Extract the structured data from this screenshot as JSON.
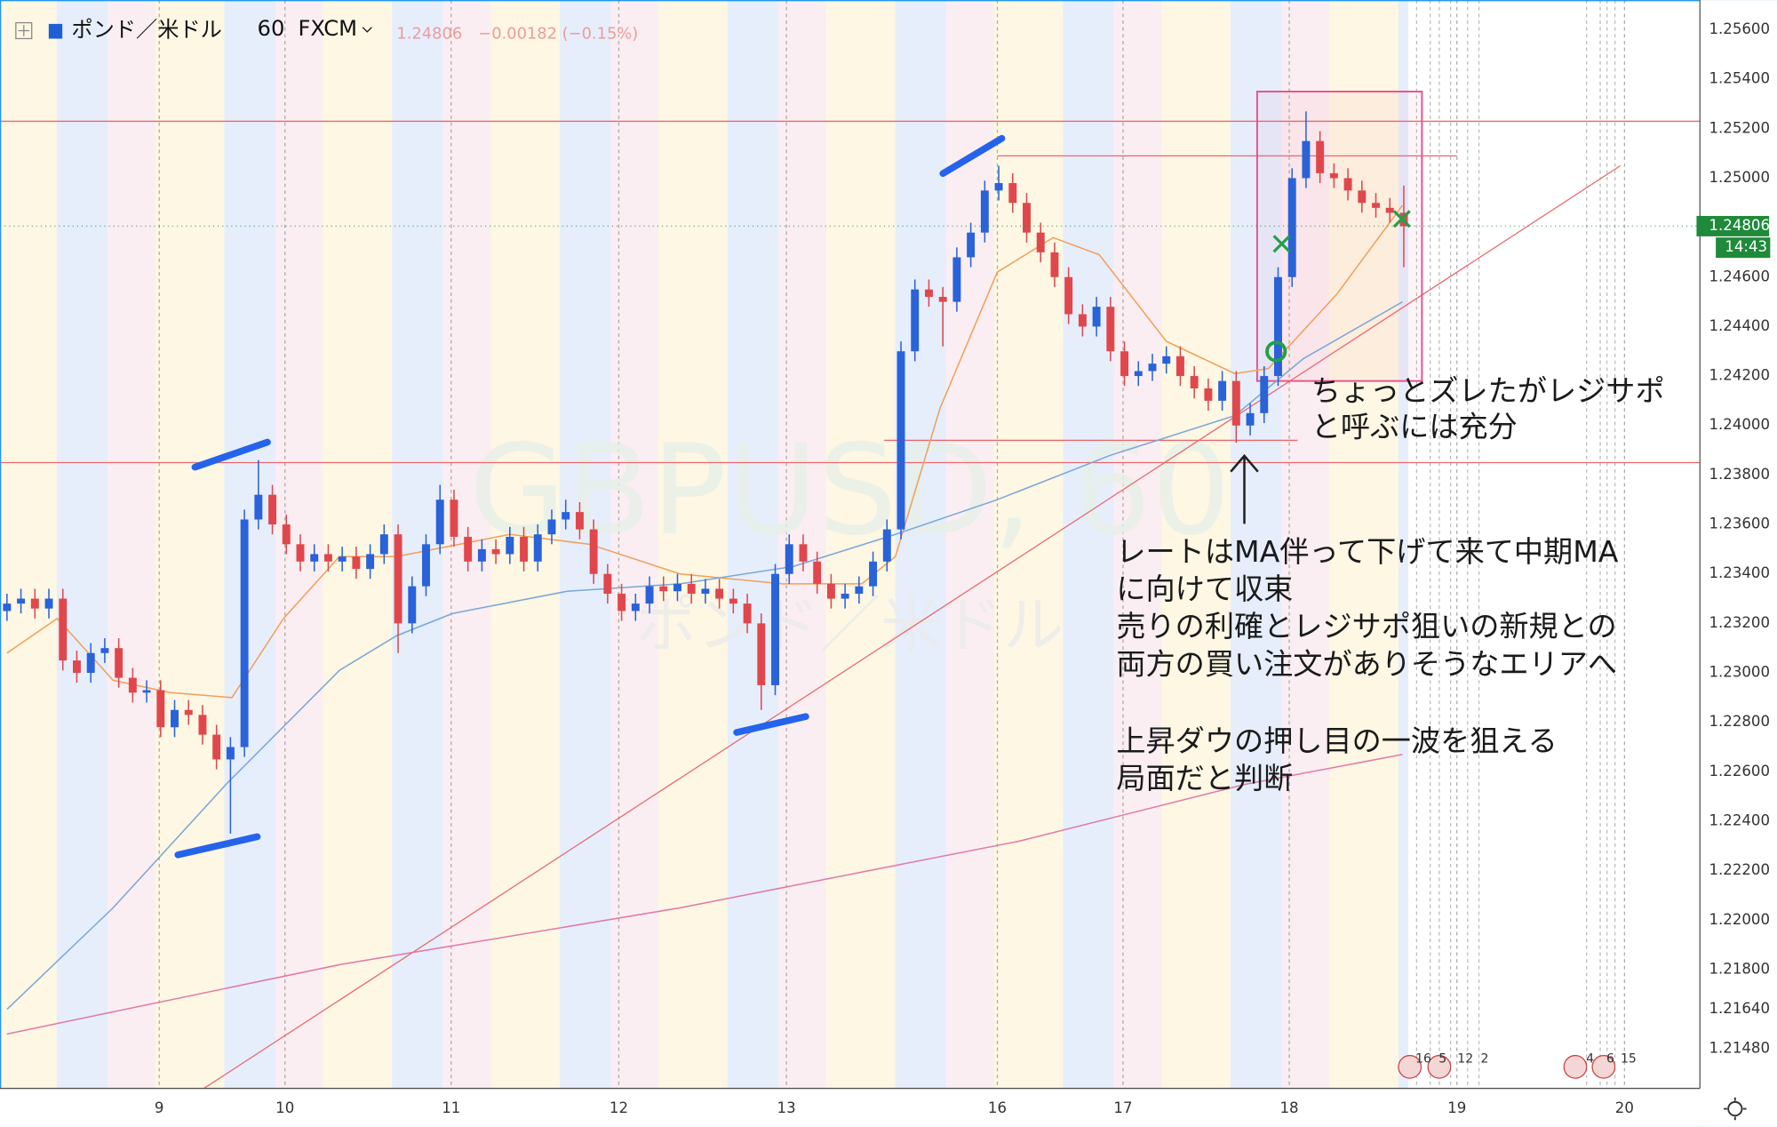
{
  "chart_data": {
    "type": "candlestick",
    "symbol": "ポンド／米ドル",
    "interval": "60",
    "source": "FXCM",
    "header_price": "1.24806",
    "header_change": "−0.00182 (−0.15%)",
    "watermark": "GBPUSD, 60",
    "watermark_sub": "ポンド／米ドル",
    "last_price": {
      "value": 1.24806,
      "label": "1.24806"
    },
    "timer": "14:43",
    "up_color": "#2962d9",
    "down_color": "#e0474c",
    "x": [
      0,
      1,
      2,
      3,
      4,
      5,
      6,
      7,
      8,
      9,
      10,
      11,
      12,
      13,
      14,
      15,
      16,
      17,
      18,
      19,
      20,
      21,
      22,
      23,
      24,
      25,
      26,
      27,
      28,
      29,
      30,
      31,
      32,
      33,
      34,
      35,
      36,
      37,
      38,
      39,
      40,
      41,
      42,
      43,
      44,
      45,
      46,
      47,
      48,
      49,
      50,
      51,
      52,
      53,
      54,
      55,
      56,
      57,
      58,
      59,
      60,
      61,
      62,
      63,
      64,
      65,
      66,
      67,
      68,
      69,
      70,
      71,
      72,
      73,
      74,
      75,
      76,
      77,
      78,
      79,
      80,
      81,
      82,
      83,
      84,
      85,
      86,
      87,
      88,
      89,
      90,
      91,
      92,
      93,
      94,
      95,
      96,
      97,
      98,
      99,
      100
    ],
    "open": [
      1.2325,
      1.2328,
      1.233,
      1.2326,
      1.233,
      1.2305,
      1.23,
      1.2308,
      1.231,
      1.2298,
      1.2292,
      1.2293,
      1.2278,
      1.2285,
      1.2283,
      1.2275,
      1.2265,
      1.227,
      1.2362,
      1.2372,
      1.236,
      1.2352,
      1.2345,
      1.2348,
      1.2345,
      1.2347,
      1.2342,
      1.2348,
      1.2356,
      1.232,
      1.2335,
      1.2352,
      1.237,
      1.2355,
      1.2345,
      1.235,
      1.2348,
      1.2355,
      1.2345,
      1.2356,
      1.2362,
      1.2365,
      1.2358,
      1.234,
      1.2332,
      1.2325,
      1.2328,
      1.2335,
      1.2333,
      1.2336,
      1.2332,
      1.2334,
      1.233,
      1.2328,
      1.232,
      1.2295,
      1.234,
      1.2352,
      1.2345,
      1.2336,
      1.233,
      1.2332,
      1.2335,
      1.2345,
      1.2358,
      1.243,
      1.2455,
      1.2452,
      1.245,
      1.2468,
      1.2478,
      1.2495,
      1.2498,
      1.249,
      1.2478,
      1.247,
      1.246,
      1.2445,
      1.244,
      1.2448,
      1.243,
      1.242,
      1.2422,
      1.2425,
      1.2428,
      1.242,
      1.2415,
      1.241,
      1.2418,
      1.24,
      1.2405,
      1.242,
      1.246,
      1.25,
      1.2515,
      1.2502,
      1.25,
      1.2495,
      1.249,
      1.2488,
      1.2486
    ],
    "high": [
      1.2332,
      1.2334,
      1.2334,
      1.2334,
      1.2334,
      1.2309,
      1.2312,
      1.2314,
      1.2314,
      1.2302,
      1.2297,
      1.2297,
      1.2289,
      1.2289,
      1.2287,
      1.2279,
      1.2274,
      1.2366,
      1.2386,
      1.2376,
      1.2364,
      1.2356,
      1.2352,
      1.2352,
      1.2351,
      1.2351,
      1.2352,
      1.236,
      1.236,
      1.2339,
      1.2356,
      1.2376,
      1.2374,
      1.2359,
      1.2354,
      1.2354,
      1.2359,
      1.2359,
      1.236,
      1.2366,
      1.237,
      1.2369,
      1.2362,
      1.2344,
      1.2336,
      1.2332,
      1.2339,
      1.2339,
      1.234,
      1.234,
      1.2338,
      1.2338,
      1.2334,
      1.2332,
      1.2324,
      1.2344,
      1.2356,
      1.2356,
      1.2349,
      1.234,
      1.2336,
      1.2339,
      1.2349,
      1.2362,
      1.2434,
      1.2459,
      1.2459,
      1.2456,
      1.2472,
      1.2482,
      1.2499,
      1.2505,
      1.2502,
      1.2494,
      1.2482,
      1.2474,
      1.2464,
      1.2449,
      1.2452,
      1.2452,
      1.2434,
      1.2426,
      1.2429,
      1.2432,
      1.2432,
      1.2424,
      1.2419,
      1.2422,
      1.2422,
      1.2409,
      1.2424,
      1.2464,
      1.2504,
      1.2527,
      1.2519,
      1.2506,
      1.2504,
      1.2499,
      1.2494,
      1.2492,
      1.2497
    ],
    "low": [
      1.2321,
      1.2324,
      1.2322,
      1.2322,
      1.2301,
      1.2296,
      1.2296,
      1.2304,
      1.2294,
      1.2288,
      1.2288,
      1.2274,
      1.2274,
      1.2279,
      1.2271,
      1.2261,
      1.2235,
      1.2266,
      1.2358,
      1.2356,
      1.2348,
      1.2341,
      1.2341,
      1.2341,
      1.2341,
      1.2338,
      1.2338,
      1.2344,
      1.2308,
      1.2316,
      1.2331,
      1.2348,
      1.2351,
      1.2341,
      1.2341,
      1.2344,
      1.2344,
      1.2341,
      1.2341,
      1.2352,
      1.2358,
      1.2354,
      1.2336,
      1.2328,
      1.2321,
      1.2321,
      1.2324,
      1.2329,
      1.2329,
      1.2328,
      1.2328,
      1.2326,
      1.2324,
      1.2316,
      1.2285,
      1.2291,
      1.2336,
      1.2341,
      1.2332,
      1.2326,
      1.2326,
      1.2328,
      1.2331,
      1.2341,
      1.2354,
      1.2426,
      1.2448,
      1.2432,
      1.2446,
      1.2464,
      1.2474,
      1.2491,
      1.2486,
      1.2474,
      1.2466,
      1.2456,
      1.2441,
      1.2436,
      1.2436,
      1.2426,
      1.2416,
      1.2416,
      1.2418,
      1.2421,
      1.2416,
      1.2411,
      1.2406,
      1.2406,
      1.2393,
      1.2396,
      1.2401,
      1.2416,
      1.2456,
      1.2496,
      1.2498,
      1.2496,
      1.2491,
      1.2486,
      1.2484,
      1.2482,
      1.2464
    ],
    "close": [
      1.2328,
      1.233,
      1.2326,
      1.233,
      1.2305,
      1.23,
      1.2308,
      1.231,
      1.2298,
      1.2292,
      1.2293,
      1.2278,
      1.2285,
      1.2283,
      1.2275,
      1.2265,
      1.227,
      1.2362,
      1.2372,
      1.236,
      1.2352,
      1.2345,
      1.2348,
      1.2345,
      1.2347,
      1.2342,
      1.2348,
      1.2356,
      1.232,
      1.2335,
      1.2352,
      1.237,
      1.2355,
      1.2345,
      1.235,
      1.2348,
      1.2355,
      1.2345,
      1.2356,
      1.2362,
      1.2365,
      1.2358,
      1.234,
      1.2332,
      1.2325,
      1.2328,
      1.2335,
      1.2333,
      1.2336,
      1.2332,
      1.2334,
      1.233,
      1.2328,
      1.232,
      1.2295,
      1.234,
      1.2352,
      1.2345,
      1.2336,
      1.233,
      1.2332,
      1.2335,
      1.2345,
      1.2358,
      1.243,
      1.2455,
      1.2452,
      1.245,
      1.2468,
      1.2478,
      1.2495,
      1.2498,
      1.249,
      1.2478,
      1.247,
      1.246,
      1.2445,
      1.244,
      1.2448,
      1.243,
      1.242,
      1.2422,
      1.2425,
      1.2428,
      1.242,
      1.2415,
      1.241,
      1.2418,
      1.24,
      1.2405,
      1.242,
      1.246,
      1.25,
      1.2515,
      1.2502,
      1.25,
      1.2495,
      1.249,
      1.2488,
      1.2486,
      1.24806
    ],
    "moving_averages": [
      {
        "color": "#f0a05a",
        "x": [
          0,
          3.6,
          7.6,
          11.7,
          16.1,
          19.8,
          23.8,
          27.9,
          36,
          41.7,
          48.2,
          55.5,
          61.2,
          63.6,
          66.8,
          70.9,
          74.9,
          78.2,
          83,
          87.9,
          90.3,
          95.2,
          99.9
        ],
        "values": [
          1.2308,
          1.2322,
          1.2297,
          1.2292,
          1.229,
          1.2322,
          1.2347,
          1.2347,
          1.2356,
          1.2352,
          1.234,
          1.2336,
          1.2336,
          1.2347,
          1.2407,
          1.2462,
          1.2476,
          1.2469,
          1.2434,
          1.2421,
          1.2423,
          1.2453,
          1.2489
        ]
      },
      {
        "color": "#7aa7d8",
        "x": [
          0,
          7.6,
          15.7,
          23.8,
          27.9,
          31.9,
          40.1,
          48.2,
          56.3,
          63.6,
          70.9,
          79,
          87.9,
          92.8,
          99.9
        ],
        "values": [
          1.2164,
          1.2205,
          1.2255,
          1.2301,
          1.2315,
          1.2324,
          1.2333,
          1.2336,
          1.2343,
          1.2356,
          1.237,
          1.2388,
          1.2404,
          1.2427,
          1.245
        ]
      },
      {
        "color": "#e07aa8",
        "x": [
          0,
          23.8,
          48.2,
          72.5,
          88.7,
          99.9
        ],
        "values": [
          1.2154,
          1.2182,
          1.2205,
          1.2232,
          1.2255,
          1.2267
        ]
      }
    ],
    "horizontal_lines": [
      {
        "value": 1.2523,
        "x": [
          -0.5,
          121.2
        ]
      },
      {
        "value": 1.2385,
        "x": [
          -0.5,
          121.2
        ]
      },
      {
        "value": 1.2509,
        "x": [
          70.9,
          103.8
        ]
      },
      {
        "value": 1.2394,
        "x": [
          62.8,
          92.4
        ]
      }
    ],
    "line_color": "#e8696e",
    "trend_line": {
      "x": [
        14.1,
        115.5
      ],
      "values": [
        1.2132,
        1.2505
      ]
    },
    "box": {
      "color": "#e8508a",
      "x": [
        89.5,
        101.3
      ],
      "values": [
        1.2535,
        1.2418
      ]
    },
    "xlim": [
      -0.5,
      121.2
    ],
    "ylim": [
      1.2132,
      1.2572
    ],
    "xticks": [
      {
        "value": 10.9,
        "label": "9"
      },
      {
        "value": 19.9,
        "label": "10"
      },
      {
        "value": 31.8,
        "label": "11"
      },
      {
        "value": 43.8,
        "label": "12"
      },
      {
        "value": 55.8,
        "label": "13"
      },
      {
        "value": 70.9,
        "label": "16"
      },
      {
        "value": 79.9,
        "label": "17"
      },
      {
        "value": 91.8,
        "label": "18"
      },
      {
        "value": 103.8,
        "label": "19"
      },
      {
        "value": 115.8,
        "label": "20"
      }
    ],
    "yticks": [
      {
        "value": 1.256,
        "label": "1.25600"
      },
      {
        "value": 1.254,
        "label": "1.25400"
      },
      {
        "value": 1.252,
        "label": "1.25200"
      },
      {
        "value": 1.25,
        "label": "1.25000"
      },
      {
        "value": 1.246,
        "label": "1.24600"
      },
      {
        "value": 1.244,
        "label": "1.24400"
      },
      {
        "value": 1.242,
        "label": "1.24200"
      },
      {
        "value": 1.24,
        "label": "1.24000"
      },
      {
        "value": 1.238,
        "label": "1.23800"
      },
      {
        "value": 1.236,
        "label": "1.23600"
      },
      {
        "value": 1.234,
        "label": "1.23400"
      },
      {
        "value": 1.232,
        "label": "1.23200"
      },
      {
        "value": 1.23,
        "label": "1.23000"
      },
      {
        "value": 1.228,
        "label": "1.22800"
      },
      {
        "value": 1.226,
        "label": "1.22600"
      },
      {
        "value": 1.224,
        "label": "1.22400"
      },
      {
        "value": 1.222,
        "label": "1.22200"
      },
      {
        "value": 1.22,
        "label": "1.22000"
      },
      {
        "value": 1.218,
        "label": "1.21800"
      },
      {
        "value": 1.2164,
        "label": "1.21640"
      },
      {
        "value": 1.2148,
        "label": "1.21480"
      }
    ],
    "annotation_small": [
      "ちょっとズレたがレジサポ",
      "と呼ぶには充分"
    ],
    "annotation_main": [
      "レートはMA伴って下げて来て中期MA",
      "に向けて収束",
      "売りの利確とレジサポ狙いの新規との",
      "両方の買い注文がありそうなエリアへ"
    ],
    "annotation_conclusion": [
      "上昇ダウの押し目の一波を狙える",
      "局面だと判断"
    ],
    "event_labels": [
      "16",
      "5",
      "12",
      "2",
      "4",
      "6",
      "15"
    ]
  }
}
